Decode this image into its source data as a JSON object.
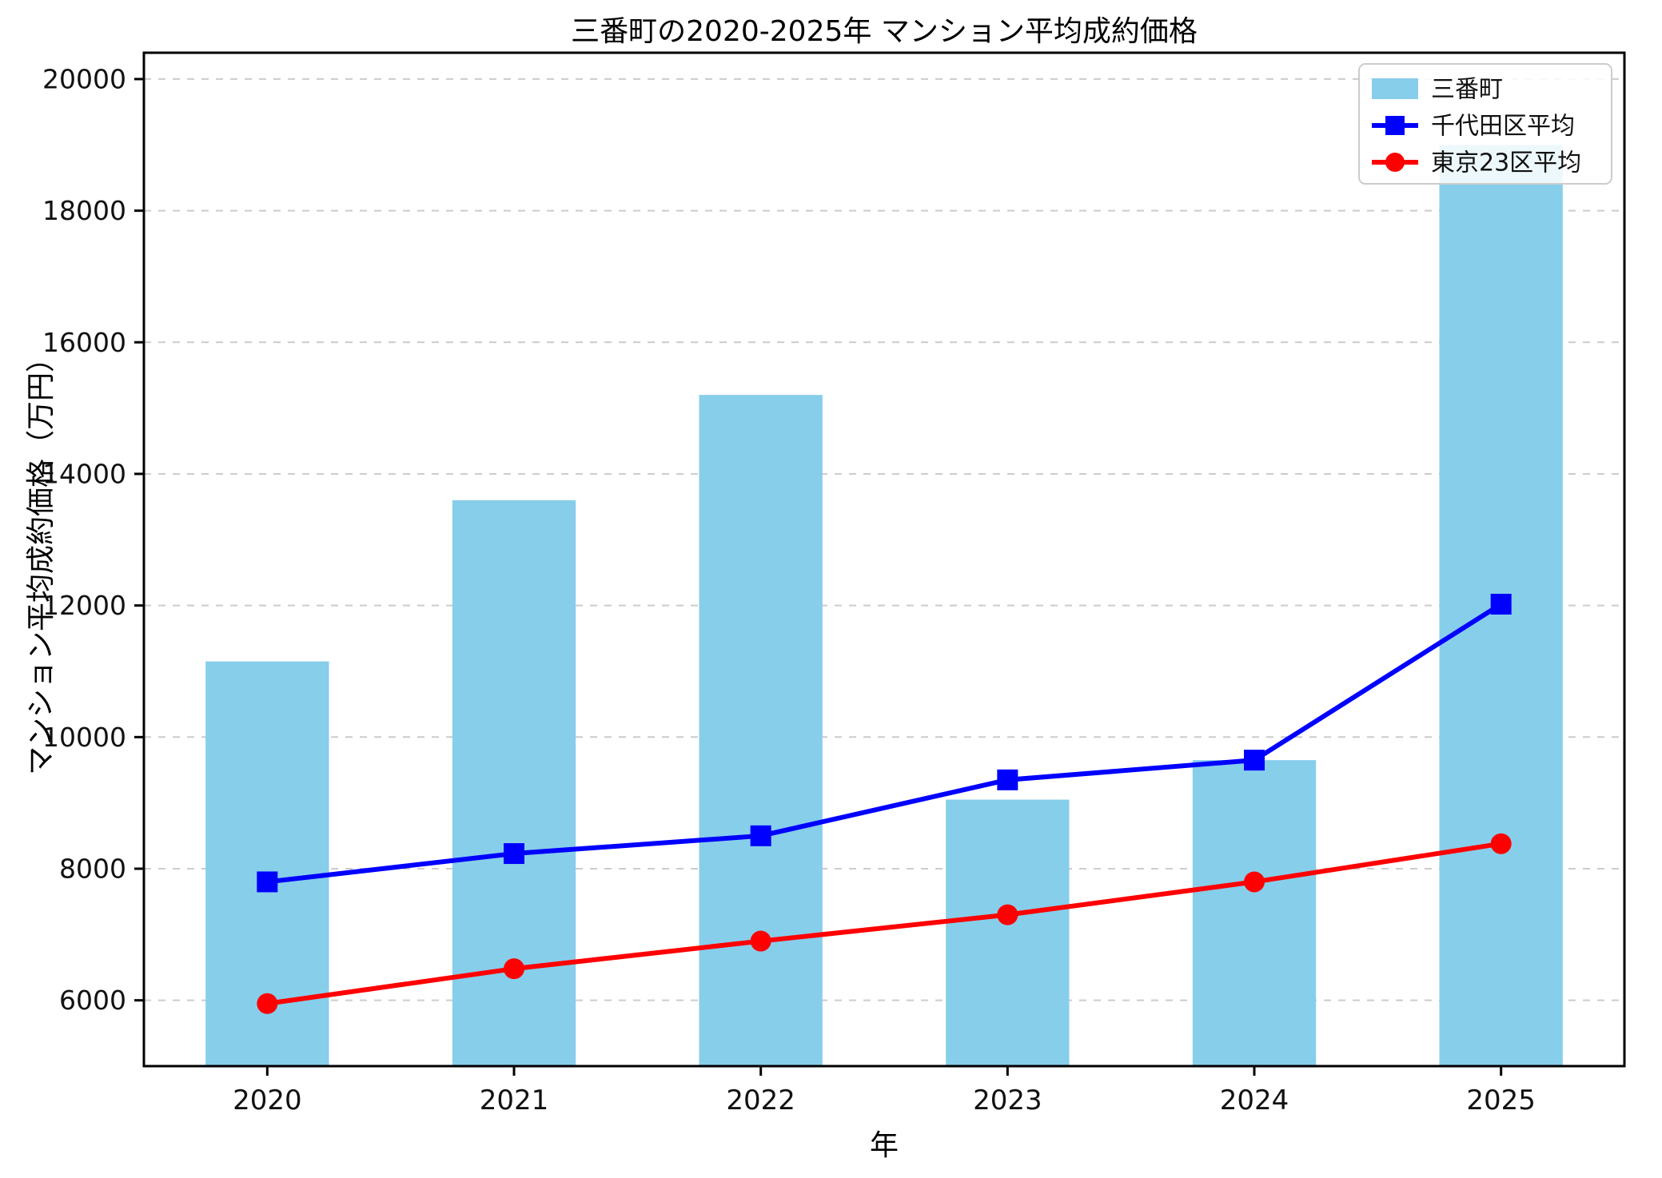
{
  "chart_data": {
    "type": "bar",
    "title": "三番町の2020-2025年 マンション平均成約価格",
    "xlabel": "年",
    "ylabel": "マンション平均成約価格（万円）",
    "categories": [
      "2020",
      "2021",
      "2022",
      "2023",
      "2024",
      "2025"
    ],
    "series": [
      {
        "name": "三番町",
        "type": "bar",
        "color": "#87CEEB",
        "values": [
          11150,
          13600,
          15200,
          9050,
          9650,
          19000
        ]
      },
      {
        "name": "千代田区平均",
        "type": "line",
        "marker": "square",
        "color": "#0000FF",
        "values": [
          7800,
          8230,
          8500,
          9350,
          9650,
          12020
        ]
      },
      {
        "name": "東京23区平均",
        "type": "line",
        "marker": "circle",
        "color": "#FF0000",
        "values": [
          5950,
          6480,
          6900,
          7300,
          7800,
          8380
        ]
      }
    ],
    "ylim": [
      5000,
      20400
    ],
    "yticks": [
      6000,
      8000,
      10000,
      12000,
      14000,
      16000,
      18000,
      20000
    ],
    "grid": true,
    "grid_color": "#cccccc",
    "axis_color": "#000000",
    "text_color": "#111111",
    "background_color": "#ffffff",
    "legend_position": "upper right",
    "legend": [
      "三番町",
      "千代田区平均",
      "東京23区平均"
    ]
  }
}
